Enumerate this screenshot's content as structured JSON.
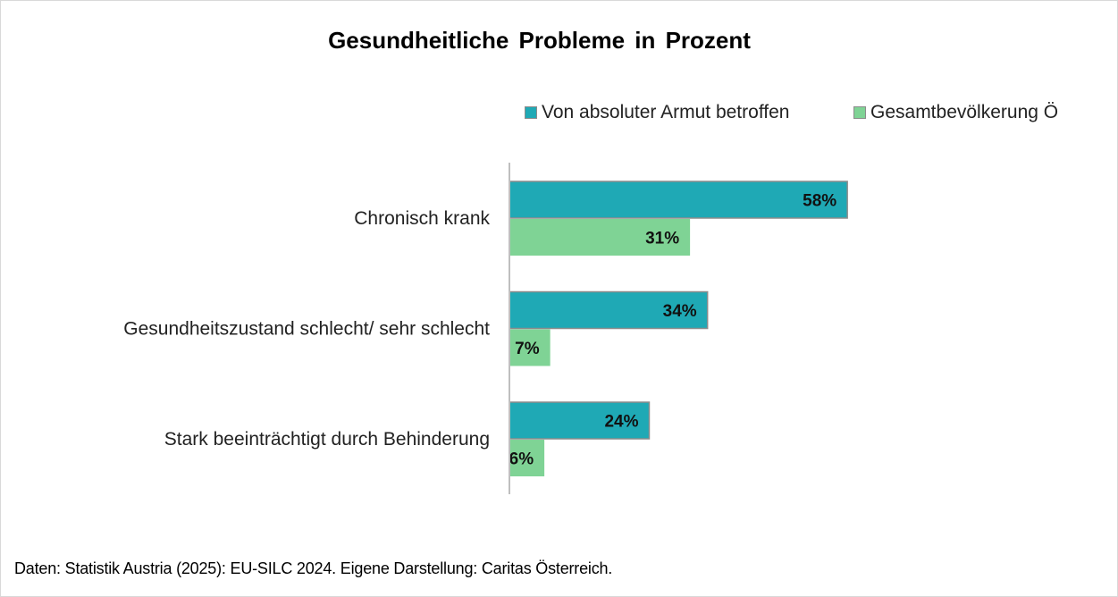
{
  "chart_data": {
    "type": "bar",
    "orientation": "horizontal",
    "title": "Gesundheitliche Probleme in Prozent",
    "categories": [
      "Chronisch krank",
      "Gesundheitszustand schlecht/ sehr schlecht",
      "Stark beeinträchtigt durch Behinderung"
    ],
    "series": [
      {
        "name": "Von absoluter Armut betroffen",
        "values": [
          58,
          34,
          24
        ],
        "labels": [
          "58%",
          "34%",
          "24%"
        ],
        "color": "#1fa9b5"
      },
      {
        "name": "Gesamtbevölkerung Ö",
        "values": [
          31,
          7,
          6
        ],
        "labels": [
          "31%",
          "7%",
          "6%"
        ],
        "color": "#7fd395"
      }
    ],
    "xlim": [
      0,
      100
    ],
    "legend_position": "top-right",
    "grid": false,
    "xlabel": "",
    "ylabel": ""
  },
  "source_note": "Daten: Statistik Austria (2025): EU-SILC 2024. Eigene Darstellung: Caritas Österreich."
}
